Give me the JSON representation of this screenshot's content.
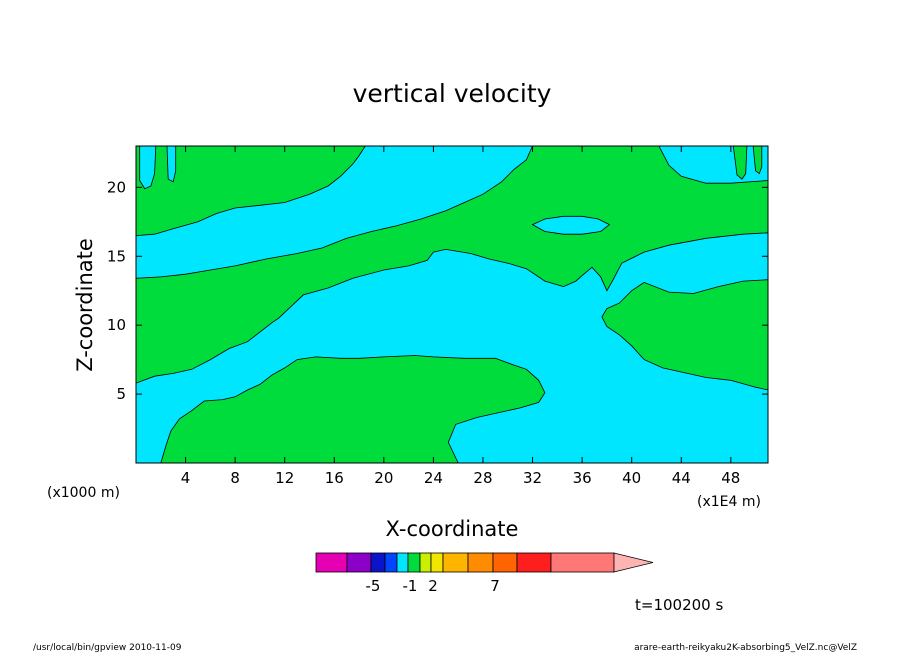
{
  "footer": {
    "program": "/usr/local/bin/gpview  2010-11-09",
    "file": "arare-earth-reikyaku2K-absorbing5_VelZ.nc@VelZ"
  },
  "chart_data": {
    "type": "contour",
    "title": "vertical velocity",
    "xlabel": "X-coordinate",
    "ylabel": "Z-coordinate",
    "x_unit": "(x1E4 m)",
    "y_unit": "(x1000 m)",
    "xlim": [
      0,
      51
    ],
    "ylim": [
      0,
      23
    ],
    "x_ticks": [
      4,
      8,
      12,
      16,
      20,
      24,
      28,
      32,
      36,
      40,
      44,
      48
    ],
    "y_ticks": [
      5,
      10,
      15,
      20
    ],
    "time_label": "t=100200 s",
    "colorbar": {
      "colors": [
        "#e600b4",
        "#8c00c8",
        "#0a14c8",
        "#0046ff",
        "#00e6ff",
        "#00dc3c",
        "#c8f000",
        "#f0e600",
        "#ffb400",
        "#ff8c00",
        "#ff6400",
        "#ff1e1e",
        "#ff7878"
      ],
      "extend_color": "#ffb4b4",
      "tick_labels": [
        {
          "label": "-5",
          "index": 2
        },
        {
          "label": "-1",
          "index": 5
        },
        {
          "label": "2",
          "index": 7
        },
        {
          "label": "7",
          "index": 10
        }
      ]
    },
    "regions": [
      {
        "name": "region-lower-left",
        "color": "#00e6ff",
        "points": [
          [
            0,
            0
          ],
          [
            0,
            5.8
          ],
          [
            1.5,
            6.3
          ],
          [
            3,
            6.5
          ],
          [
            4.5,
            6.8
          ],
          [
            6,
            7.5
          ],
          [
            7.5,
            8.3
          ],
          [
            9,
            8.8
          ],
          [
            10,
            9.5
          ],
          [
            11,
            10.2
          ],
          [
            11.5,
            10.5
          ],
          [
            13.5,
            12.2
          ],
          [
            15.5,
            12.7
          ],
          [
            17.5,
            13.4
          ],
          [
            20,
            14
          ],
          [
            22,
            14.3
          ],
          [
            23.5,
            14.7
          ],
          [
            24,
            15.3
          ],
          [
            25,
            15.5
          ],
          [
            27,
            15.2
          ],
          [
            28.5,
            14.8
          ],
          [
            30,
            14.5
          ],
          [
            31.5,
            14.1
          ],
          [
            33,
            13.2
          ],
          [
            34.5,
            12.8
          ],
          [
            35.5,
            13.2
          ],
          [
            36,
            13.6
          ],
          [
            36.8,
            14.2
          ],
          [
            37.5,
            13.5
          ],
          [
            38,
            12.5
          ],
          [
            38.5,
            13.3
          ],
          [
            39.2,
            14.5
          ],
          [
            41,
            15.3
          ],
          [
            43,
            15.8
          ],
          [
            46,
            16.3
          ],
          [
            49,
            16.6
          ],
          [
            51,
            16.7
          ],
          [
            51,
            13.3
          ],
          [
            49,
            13.2
          ],
          [
            47,
            12.8
          ],
          [
            45,
            12.3
          ],
          [
            43,
            12.4
          ],
          [
            41,
            13.1
          ],
          [
            40,
            12.5
          ],
          [
            39,
            11.6
          ],
          [
            38,
            11.2
          ],
          [
            37.6,
            10.6
          ],
          [
            38,
            9.9
          ],
          [
            39,
            9.3
          ],
          [
            40,
            8.5
          ],
          [
            41,
            7.5
          ],
          [
            42.5,
            6.9
          ],
          [
            44,
            6.6
          ],
          [
            46,
            6.2
          ],
          [
            48,
            6
          ],
          [
            50,
            5.5
          ],
          [
            51,
            5.3
          ],
          [
            51,
            0
          ],
          [
            26,
            0
          ],
          [
            25.2,
            1.5
          ],
          [
            25.8,
            2.8
          ],
          [
            27.5,
            3.3
          ],
          [
            29.5,
            3.7
          ],
          [
            31,
            4
          ],
          [
            32.5,
            4.4
          ],
          [
            33,
            5.1
          ],
          [
            32.5,
            6
          ],
          [
            31.5,
            6.8
          ],
          [
            30.5,
            7.1
          ],
          [
            29,
            7.6
          ],
          [
            26.5,
            7.6
          ],
          [
            24,
            7.7
          ],
          [
            22.5,
            7.8
          ],
          [
            20,
            7.7
          ],
          [
            18,
            7.6
          ],
          [
            16.5,
            7.6
          ],
          [
            14.5,
            7.7
          ],
          [
            13,
            7.5
          ],
          [
            12,
            6.9
          ],
          [
            11,
            6.4
          ],
          [
            10,
            5.7
          ],
          [
            9,
            5.3
          ],
          [
            8,
            4.8
          ],
          [
            7,
            4.6
          ],
          [
            5.5,
            4.5
          ],
          [
            4.5,
            3.8
          ],
          [
            3.5,
            3.2
          ],
          [
            2.8,
            2.3
          ],
          [
            2.4,
            1.2
          ],
          [
            2,
            0
          ]
        ]
      },
      {
        "name": "region-upper-left",
        "color": "#00e6ff",
        "points": [
          [
            0,
            16.5
          ],
          [
            1.5,
            16.6
          ],
          [
            3,
            17
          ],
          [
            5,
            17.5
          ],
          [
            6.5,
            18.1
          ],
          [
            8,
            18.5
          ],
          [
            10,
            18.7
          ],
          [
            12,
            18.9
          ],
          [
            14,
            19.5
          ],
          [
            15.5,
            20.1
          ],
          [
            16.5,
            20.8
          ],
          [
            17.5,
            21.7
          ],
          [
            18,
            22.3
          ],
          [
            18.5,
            23
          ],
          [
            32,
            23
          ],
          [
            31.5,
            22
          ],
          [
            30.5,
            21.3
          ],
          [
            29.5,
            20.4
          ],
          [
            28,
            19.5
          ],
          [
            26.5,
            18.9
          ],
          [
            25,
            18.3
          ],
          [
            23,
            17.7
          ],
          [
            21,
            17.2
          ],
          [
            19,
            16.8
          ],
          [
            17,
            16.3
          ],
          [
            15,
            15.6
          ],
          [
            13,
            15.2
          ],
          [
            10.5,
            14.8
          ],
          [
            8,
            14.3
          ],
          [
            6,
            14
          ],
          [
            4,
            13.7
          ],
          [
            2,
            13.5
          ],
          [
            0,
            13.4
          ]
        ]
      },
      {
        "name": "region-top-right",
        "color": "#00e6ff",
        "points": [
          [
            51,
            20.5
          ],
          [
            48,
            20.3
          ],
          [
            46,
            20.3
          ],
          [
            44,
            20.8
          ],
          [
            43,
            21.6
          ],
          [
            42.2,
            23
          ],
          [
            51,
            23
          ]
        ]
      },
      {
        "name": "island-upper-middle",
        "color": "#00e6ff",
        "points": [
          [
            32,
            17.3
          ],
          [
            33,
            17.7
          ],
          [
            34.5,
            17.9
          ],
          [
            36,
            17.9
          ],
          [
            37.3,
            17.7
          ],
          [
            38.2,
            17.3
          ],
          [
            37.5,
            16.8
          ],
          [
            36,
            16.6
          ],
          [
            34.5,
            16.6
          ],
          [
            33,
            16.8
          ]
        ]
      },
      {
        "name": "spike-top-left-1",
        "color": "#00e6ff",
        "points": [
          [
            0.3,
            23
          ],
          [
            0.3,
            20.5
          ],
          [
            0.7,
            19.9
          ],
          [
            1.2,
            20.1
          ],
          [
            1.5,
            21
          ],
          [
            1.6,
            23
          ]
        ]
      },
      {
        "name": "spike-top-left-2",
        "color": "#00e6ff",
        "points": [
          [
            2.5,
            23
          ],
          [
            2.6,
            20.6
          ],
          [
            3,
            20.4
          ],
          [
            3.2,
            21.2
          ],
          [
            3.2,
            23
          ]
        ]
      },
      {
        "name": "spike-top-right-1",
        "color": "#00dc3c",
        "points": [
          [
            48.2,
            23
          ],
          [
            48.5,
            20.9
          ],
          [
            48.9,
            20.6
          ],
          [
            49.2,
            21
          ],
          [
            49.3,
            23
          ]
        ]
      },
      {
        "name": "spike-top-right-2",
        "color": "#00dc3c",
        "points": [
          [
            49.8,
            23
          ],
          [
            50,
            21.2
          ],
          [
            50.3,
            21
          ],
          [
            50.5,
            21.5
          ],
          [
            50.5,
            23
          ]
        ]
      }
    ]
  }
}
